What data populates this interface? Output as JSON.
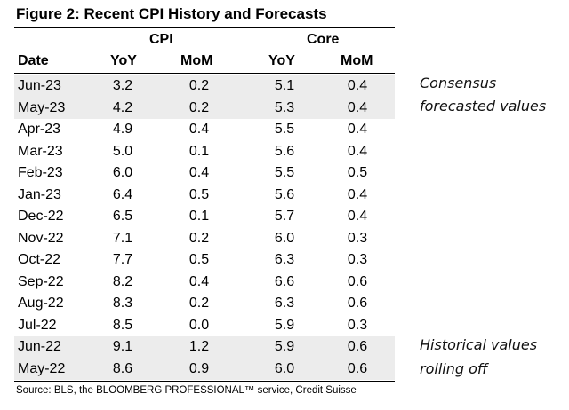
{
  "title": "Figure 2: Recent CPI History and Forecasts",
  "groups": {
    "cpi": "CPI",
    "core": "Core"
  },
  "headers": {
    "date": "Date",
    "yoy1": "YoY",
    "mom1": "MoM",
    "yoy2": "YoY",
    "mom2": "MoM"
  },
  "rows": [
    {
      "date": "Jun-23",
      "cpi_yoy": "3.2",
      "cpi_mom": "0.2",
      "core_yoy": "5.1",
      "core_mom": "0.4"
    },
    {
      "date": "May-23",
      "cpi_yoy": "4.2",
      "cpi_mom": "0.2",
      "core_yoy": "5.3",
      "core_mom": "0.4"
    },
    {
      "date": "Apr-23",
      "cpi_yoy": "4.9",
      "cpi_mom": "0.4",
      "core_yoy": "5.5",
      "core_mom": "0.4"
    },
    {
      "date": "Mar-23",
      "cpi_yoy": "5.0",
      "cpi_mom": "0.1",
      "core_yoy": "5.6",
      "core_mom": "0.4"
    },
    {
      "date": "Feb-23",
      "cpi_yoy": "6.0",
      "cpi_mom": "0.4",
      "core_yoy": "5.5",
      "core_mom": "0.5"
    },
    {
      "date": "Jan-23",
      "cpi_yoy": "6.4",
      "cpi_mom": "0.5",
      "core_yoy": "5.6",
      "core_mom": "0.4"
    },
    {
      "date": "Dec-22",
      "cpi_yoy": "6.5",
      "cpi_mom": "0.1",
      "core_yoy": "5.7",
      "core_mom": "0.4"
    },
    {
      "date": "Nov-22",
      "cpi_yoy": "7.1",
      "cpi_mom": "0.2",
      "core_yoy": "6.0",
      "core_mom": "0.3"
    },
    {
      "date": "Oct-22",
      "cpi_yoy": "7.7",
      "cpi_mom": "0.5",
      "core_yoy": "6.3",
      "core_mom": "0.3"
    },
    {
      "date": "Sep-22",
      "cpi_yoy": "8.2",
      "cpi_mom": "0.4",
      "core_yoy": "6.6",
      "core_mom": "0.6"
    },
    {
      "date": "Aug-22",
      "cpi_yoy": "8.3",
      "cpi_mom": "0.2",
      "core_yoy": "6.3",
      "core_mom": "0.6"
    },
    {
      "date": "Jul-22",
      "cpi_yoy": "8.5",
      "cpi_mom": "0.0",
      "core_yoy": "5.9",
      "core_mom": "0.3"
    },
    {
      "date": "Jun-22",
      "cpi_yoy": "9.1",
      "cpi_mom": "1.2",
      "core_yoy": "5.9",
      "core_mom": "0.6"
    },
    {
      "date": "May-22",
      "cpi_yoy": "8.6",
      "cpi_mom": "0.9",
      "core_yoy": "6.0",
      "core_mom": "0.6"
    }
  ],
  "shaded_rows": [
    0,
    1,
    12,
    13
  ],
  "shade_color": "#ececec",
  "notes": {
    "consensus_line1": "Consensus",
    "consensus_line2": "forecasted values",
    "historical_line1": "Historical values",
    "historical_line2": "rolling off"
  },
  "source": "Source: BLS, the BLOOMBERG PROFESSIONAL™ service, Credit Suisse"
}
